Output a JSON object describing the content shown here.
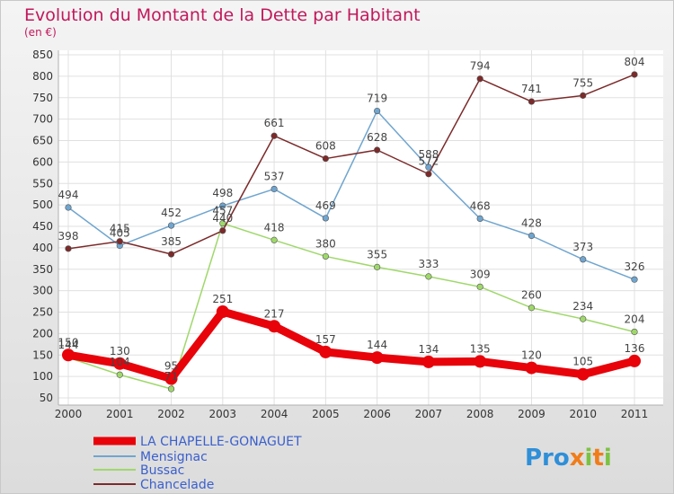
{
  "chart_data": {
    "type": "line",
    "title": "Evolution du Montant de la Dette par Habitant",
    "subtitle": "(en €)",
    "categories": [
      "2000",
      "2001",
      "2002",
      "2003",
      "2004",
      "2005",
      "2006",
      "2007",
      "2008",
      "2009",
      "2010",
      "2011"
    ],
    "yticks": [
      "50",
      "100",
      "150",
      "200",
      "250",
      "300",
      "350",
      "400",
      "450",
      "500",
      "550",
      "600",
      "650",
      "700",
      "750",
      "800",
      "850"
    ],
    "ylim": [
      50,
      850
    ],
    "grid": true,
    "legend_position": "bottom-left",
    "series": [
      {
        "name": "LA CHAPELLE-GONAGUET",
        "color": "#e8020a",
        "values": [
          150,
          130,
          95,
          251,
          217,
          157,
          144,
          134,
          135,
          120,
          105,
          136
        ]
      },
      {
        "name": "Mensignac",
        "color": "#6fa5cf",
        "values": [
          494,
          405,
          452,
          498,
          537,
          469,
          719,
          588,
          468,
          428,
          373,
          326
        ]
      },
      {
        "name": "Bussac",
        "color": "#9fd86a",
        "values": [
          144,
          104,
          71,
          457,
          418,
          380,
          355,
          333,
          309,
          260,
          234,
          204
        ]
      },
      {
        "name": "Chancelade",
        "color": "#7c2a2a",
        "values": [
          398,
          415,
          385,
          440,
          661,
          608,
          628,
          572,
          794,
          741,
          755,
          804
        ]
      }
    ]
  },
  "logo": {
    "text": "Proxiti"
  }
}
